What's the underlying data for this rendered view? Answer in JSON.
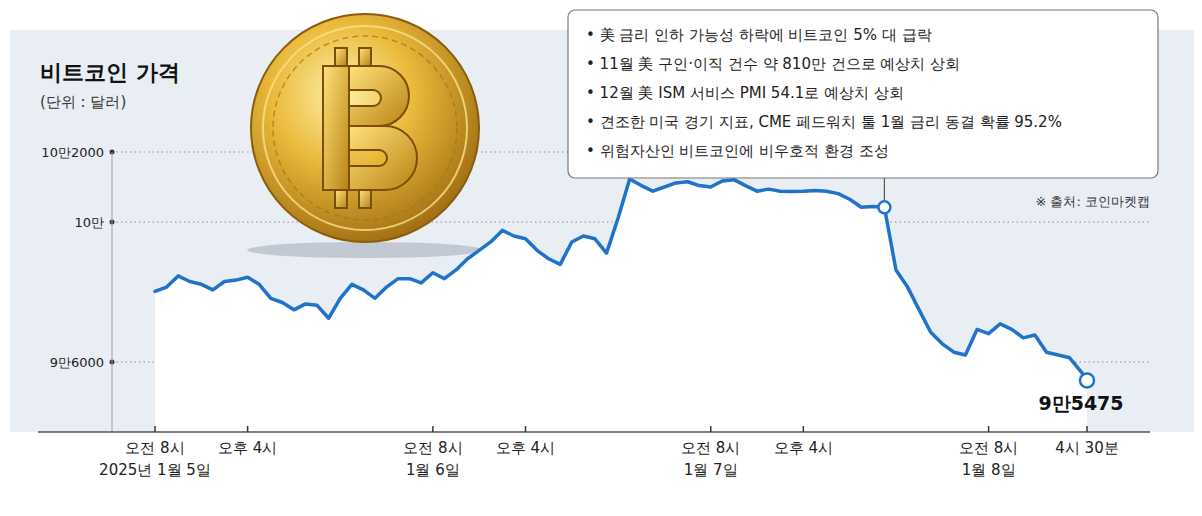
{
  "chart_data": {
    "type": "line",
    "title": "비트코인 가격",
    "subtitle": "(단위 : 달러)",
    "source": "※ 출처: 코인마켓캡",
    "color": "#1f73c9",
    "grid": true,
    "x": [
      "2025-01-05 08:00",
      "2025-01-05 09:00",
      "2025-01-05 10:00",
      "2025-01-05 11:00",
      "2025-01-05 12:00",
      "2025-01-05 13:00",
      "2025-01-05 14:00",
      "2025-01-05 15:00",
      "2025-01-05 16:00",
      "2025-01-05 17:00",
      "2025-01-05 18:00",
      "2025-01-05 19:00",
      "2025-01-05 20:00",
      "2025-01-05 21:00",
      "2025-01-05 22:00",
      "2025-01-05 23:00",
      "2025-01-06 00:00",
      "2025-01-06 01:00",
      "2025-01-06 02:00",
      "2025-01-06 03:00",
      "2025-01-06 04:00",
      "2025-01-06 05:00",
      "2025-01-06 06:00",
      "2025-01-06 07:00",
      "2025-01-06 08:00",
      "2025-01-06 09:00",
      "2025-01-06 10:00",
      "2025-01-06 11:00",
      "2025-01-06 12:00",
      "2025-01-06 13:00",
      "2025-01-06 14:00",
      "2025-01-06 15:00",
      "2025-01-06 16:00",
      "2025-01-06 17:00",
      "2025-01-06 18:00",
      "2025-01-06 19:00",
      "2025-01-06 20:00",
      "2025-01-06 21:00",
      "2025-01-06 22:00",
      "2025-01-06 23:00",
      "2025-01-07 00:00",
      "2025-01-07 01:00",
      "2025-01-07 02:00",
      "2025-01-07 03:00",
      "2025-01-07 04:00",
      "2025-01-07 05:00",
      "2025-01-07 06:00",
      "2025-01-07 07:00",
      "2025-01-07 08:00",
      "2025-01-07 09:00",
      "2025-01-07 10:00",
      "2025-01-07 11:00",
      "2025-01-07 12:00",
      "2025-01-07 13:00",
      "2025-01-07 14:00",
      "2025-01-07 15:00",
      "2025-01-07 16:00",
      "2025-01-07 17:00",
      "2025-01-07 18:00",
      "2025-01-07 19:00",
      "2025-01-07 20:00",
      "2025-01-07 21:00",
      "2025-01-07 22:00",
      "2025-01-07 23:00",
      "2025-01-08 00:00",
      "2025-01-08 01:00",
      "2025-01-08 02:00",
      "2025-01-08 03:00",
      "2025-01-08 04:00",
      "2025-01-08 05:00",
      "2025-01-08 06:00",
      "2025-01-08 07:00",
      "2025-01-08 08:00",
      "2025-01-08 09:00",
      "2025-01-08 10:00",
      "2025-01-08 11:00",
      "2025-01-08 12:00",
      "2025-01-08 13:00",
      "2025-01-08 14:00",
      "2025-01-08 15:00",
      "2025-01-08 16:00",
      "2025-01-08 16:30"
    ],
    "values": [
      98020,
      98140,
      98460,
      98300,
      98220,
      98060,
      98300,
      98340,
      98420,
      98220,
      97820,
      97700,
      97490,
      97660,
      97620,
      97250,
      97820,
      98220,
      98060,
      97820,
      98140,
      98380,
      98380,
      98260,
      98550,
      98380,
      98630,
      98950,
      99190,
      99430,
      99760,
      99600,
      99520,
      99190,
      98950,
      98790,
      99430,
      99600,
      99520,
      99110,
      100115,
      101230,
      101040,
      100880,
      101000,
      101115,
      101150,
      101040,
      101000,
      101170,
      101210,
      101040,
      100880,
      100940,
      100880,
      100870,
      100880,
      100900,
      100880,
      100810,
      100650,
      100420,
      100440,
      100420,
      98630,
      98140,
      97490,
      96850,
      96520,
      96280,
      96200,
      96930,
      96810,
      97090,
      96930,
      96690,
      96770,
      96280,
      96200,
      96120,
      95720,
      95475
    ],
    "xlim": [
      "2025-01-05 08:00",
      "2025-01-08 16:30"
    ],
    "xticks": [
      {
        "value": "2025-01-05 08:00",
        "label": "오전 8시\n2025년 1월 5일"
      },
      {
        "value": "2025-01-05 16:00",
        "label": "오후 4시"
      },
      {
        "value": "2025-01-06 08:00",
        "label": "오전 8시\n1월 6일"
      },
      {
        "value": "2025-01-06 16:00",
        "label": "오후 4시"
      },
      {
        "value": "2025-01-07 08:00",
        "label": "오전 8시\n1월 7일"
      },
      {
        "value": "2025-01-07 16:00",
        "label": "오후 4시"
      },
      {
        "value": "2025-01-08 08:00",
        "label": "오전 8시\n1월 8일"
      },
      {
        "value": "2025-01-08 16:30",
        "label": "4시 30분"
      }
    ],
    "ylim": [
      94000,
      102000
    ],
    "yticks": [
      {
        "value": 96000,
        "label": "9만6000"
      },
      {
        "value": 100000,
        "label": "10만"
      },
      {
        "value": 102000,
        "label": "10만2000"
      }
    ],
    "annotation": {
      "x": "2025-01-07 23:00",
      "lines": [
        "• 美 금리 인하 가능성 하락에 비트코인 5% 대 급락",
        "• 11월 美 구인·이직 건수 약 810만 건으로 예상치 상회",
        "• 12월 美 ISM 서비스 PMI 54.1로 예상치 상회",
        "• 견조한 미국 경기 지표, CME 페드워치 툴 1월 금리 동결 확률 95.2%",
        "• 위험자산인 비트코인에 비우호적 환경 조성"
      ]
    },
    "end_label": "9만5475"
  }
}
